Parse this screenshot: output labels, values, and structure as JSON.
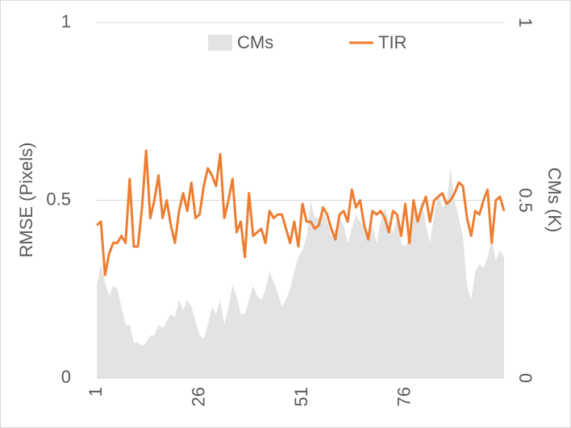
{
  "chart_data": {
    "type": "area-line",
    "y_label": "RMSE (Pixels)",
    "y2_label": "CMs (K)",
    "x": [
      1,
      2,
      3,
      4,
      5,
      6,
      7,
      8,
      9,
      10,
      11,
      12,
      13,
      14,
      15,
      16,
      17,
      18,
      19,
      20,
      21,
      22,
      23,
      24,
      25,
      26,
      27,
      28,
      29,
      30,
      31,
      32,
      33,
      34,
      35,
      36,
      37,
      38,
      39,
      40,
      41,
      42,
      43,
      44,
      45,
      46,
      47,
      48,
      49,
      50,
      51,
      52,
      53,
      54,
      55,
      56,
      57,
      58,
      59,
      60,
      61,
      62,
      63,
      64,
      65,
      66,
      67,
      68,
      69,
      70,
      71,
      72,
      73,
      74,
      75,
      76,
      77,
      78,
      79,
      80,
      81,
      82,
      83,
      84,
      85,
      86,
      87,
      88,
      89,
      90,
      91,
      92,
      93,
      94,
      95,
      96,
      97,
      98,
      99,
      100
    ],
    "xlim": [
      1,
      100
    ],
    "xticks": [
      1,
      26,
      51,
      76
    ],
    "ylim": [
      0,
      1
    ],
    "yticks": [
      0,
      0.5,
      1
    ],
    "y2lim": [
      0,
      1
    ],
    "y2ticks": [
      0,
      0.5,
      1
    ],
    "grid": true,
    "legend": "top",
    "series": [
      {
        "name": "CMs",
        "kind": "area",
        "axis": "y2",
        "color": "#e3e3e3",
        "values": [
          0.26,
          0.32,
          0.27,
          0.23,
          0.26,
          0.25,
          0.2,
          0.15,
          0.15,
          0.1,
          0.1,
          0.09,
          0.1,
          0.12,
          0.12,
          0.15,
          0.14,
          0.16,
          0.18,
          0.17,
          0.22,
          0.19,
          0.22,
          0.2,
          0.16,
          0.12,
          0.11,
          0.15,
          0.2,
          0.18,
          0.22,
          0.15,
          0.2,
          0.26,
          0.23,
          0.18,
          0.18,
          0.22,
          0.26,
          0.23,
          0.22,
          0.25,
          0.3,
          0.27,
          0.24,
          0.2,
          0.22,
          0.25,
          0.3,
          0.34,
          0.36,
          0.4,
          0.5,
          0.45,
          0.45,
          0.47,
          0.44,
          0.4,
          0.42,
          0.45,
          0.43,
          0.38,
          0.42,
          0.46,
          0.44,
          0.42,
          0.4,
          0.43,
          0.38,
          0.44,
          0.48,
          0.44,
          0.41,
          0.45,
          0.38,
          0.37,
          0.4,
          0.47,
          0.45,
          0.5,
          0.43,
          0.38,
          0.46,
          0.52,
          0.48,
          0.49,
          0.59,
          0.5,
          0.45,
          0.4,
          0.26,
          0.22,
          0.3,
          0.32,
          0.31,
          0.34,
          0.39,
          0.33,
          0.36,
          0.34
        ]
      },
      {
        "name": "TIR",
        "kind": "line",
        "axis": "y",
        "color": "#ed7d31",
        "values": [
          0.43,
          0.44,
          0.29,
          0.35,
          0.38,
          0.38,
          0.4,
          0.38,
          0.56,
          0.37,
          0.37,
          0.48,
          0.64,
          0.45,
          0.5,
          0.57,
          0.45,
          0.5,
          0.43,
          0.38,
          0.47,
          0.52,
          0.47,
          0.55,
          0.45,
          0.46,
          0.54,
          0.59,
          0.57,
          0.54,
          0.63,
          0.45,
          0.5,
          0.56,
          0.41,
          0.44,
          0.34,
          0.52,
          0.4,
          0.41,
          0.42,
          0.38,
          0.47,
          0.45,
          0.46,
          0.46,
          0.42,
          0.38,
          0.44,
          0.37,
          0.49,
          0.44,
          0.44,
          0.42,
          0.43,
          0.48,
          0.46,
          0.42,
          0.39,
          0.46,
          0.47,
          0.44,
          0.53,
          0.48,
          0.5,
          0.43,
          0.39,
          0.47,
          0.46,
          0.47,
          0.45,
          0.41,
          0.47,
          0.46,
          0.4,
          0.49,
          0.38,
          0.5,
          0.44,
          0.48,
          0.51,
          0.44,
          0.5,
          0.51,
          0.52,
          0.49,
          0.5,
          0.52,
          0.55,
          0.54,
          0.45,
          0.4,
          0.47,
          0.46,
          0.5,
          0.53,
          0.38,
          0.5,
          0.51,
          0.47
        ]
      }
    ]
  }
}
